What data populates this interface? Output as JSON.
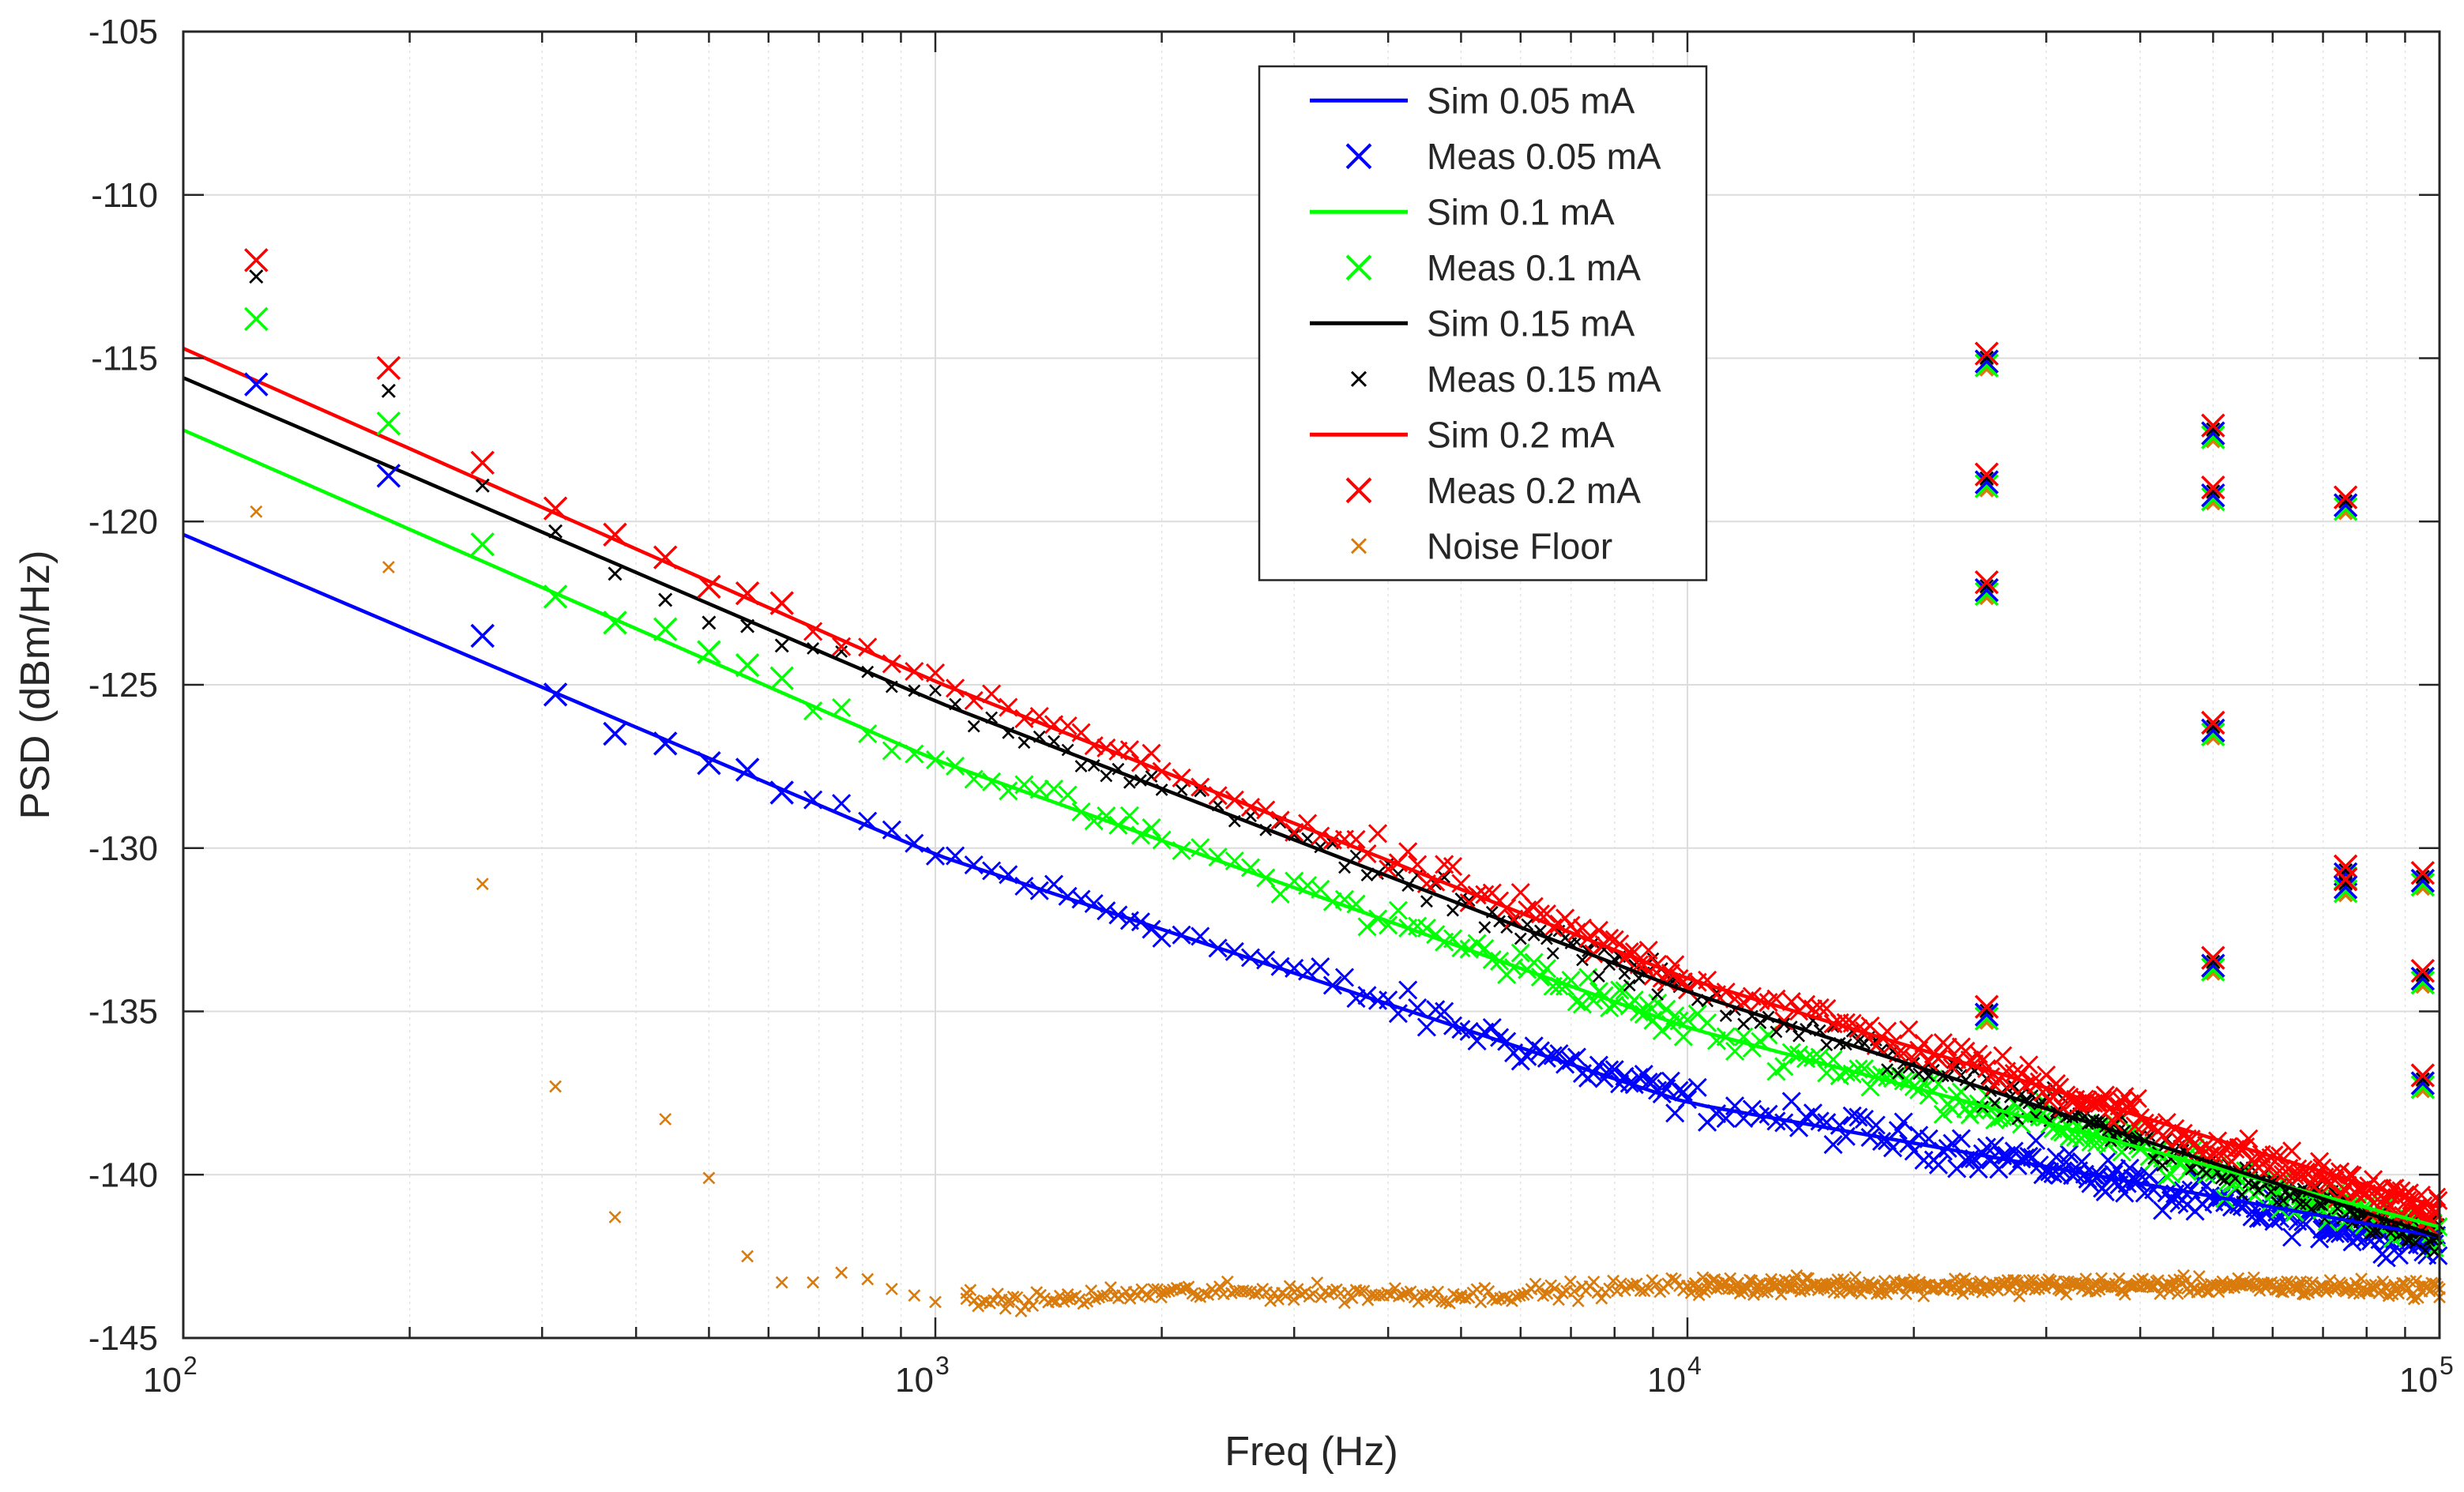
{
  "chart_data": {
    "type": "scatter",
    "title": "",
    "xlabel": "Freq (Hz)",
    "ylabel": "PSD (dBm/Hz)",
    "xscale": "log",
    "xlim": [
      100,
      100000
    ],
    "ylim": [
      -145,
      -105
    ],
    "grid": true,
    "legend_location": "top-center",
    "x_tick_labels": [
      {
        "base": "10",
        "exp": "2"
      },
      {
        "base": "10",
        "exp": "3"
      },
      {
        "base": "10",
        "exp": "4"
      },
      {
        "base": "10",
        "exp": "5"
      }
    ],
    "y_ticks": [
      -145,
      -140,
      -135,
      -130,
      -125,
      -120,
      -115,
      -110,
      -105
    ],
    "sim_lines": [
      {
        "name": "Sim 0.05 mA",
        "color": "#0000FF",
        "x": [
          100,
          1000,
          10000,
          100000
        ],
        "y": [
          -120.4,
          -130.2,
          -137.8,
          -141.9
        ]
      },
      {
        "name": "Sim 0.1 mA",
        "color": "#00FF00",
        "x": [
          100,
          1000,
          10000,
          100000
        ],
        "y": [
          -117.2,
          -127.3,
          -135.5,
          -141.6
        ]
      },
      {
        "name": "Sim 0.15 mA",
        "color": "#000000",
        "x": [
          100,
          1000,
          10000,
          100000
        ],
        "y": [
          -115.6,
          -125.5,
          -134.4,
          -141.9
        ]
      },
      {
        "name": "Sim 0.2 mA",
        "color": "#FF0000",
        "x": [
          100,
          1000,
          10000,
          100000
        ],
        "y": [
          -114.7,
          -124.9,
          -134.0,
          -141.0
        ]
      }
    ],
    "measured_series": [
      {
        "name": "Meas 0.05 mA",
        "color": "#0000FF",
        "marker": "x-large",
        "x": [
          125,
          187.5,
          250,
          312.5,
          375,
          437.5,
          500,
          562.5,
          625
        ],
        "y": [
          -115.8,
          -118.6,
          -123.5,
          -125.3,
          -126.5,
          -126.8,
          -127.4,
          -127.6,
          -128.3
        ]
      },
      {
        "name": "Meas 0.1 mA",
        "color": "#00FF00",
        "marker": "x-large",
        "x": [
          125,
          187.5,
          250,
          312.5,
          375,
          437.5,
          500,
          562.5,
          625
        ],
        "y": [
          -113.8,
          -117.0,
          -120.7,
          -122.3,
          -123.1,
          -123.3,
          -124.0,
          -124.4,
          -124.8
        ]
      },
      {
        "name": "Meas 0.15 mA",
        "color": "#000000",
        "marker": "x-small",
        "x": [
          125,
          187.5,
          250,
          312.5,
          375,
          437.5,
          500,
          562.5,
          625
        ],
        "y": [
          -112.5,
          -116.0,
          -118.9,
          -120.3,
          -121.6,
          -122.4,
          -123.1,
          -123.2,
          -123.8
        ]
      },
      {
        "name": "Meas 0.2 mA",
        "color": "#FF0000",
        "marker": "x-large",
        "x": [
          125,
          187.5,
          250,
          312.5,
          375,
          437.5,
          500,
          562.5,
          625
        ],
        "y": [
          -112.0,
          -115.3,
          -118.2,
          -119.6,
          -120.4,
          -121.1,
          -122.0,
          -122.2,
          -122.5
        ]
      }
    ],
    "dense_scatter_note": "Measured series continue densely (every 62.5 Hz) up to 100 kHz, following their simulated curves with ~0.5 dB scatter.",
    "harmonic_spurs": {
      "x": [
        25000,
        50000,
        75000,
        95000
      ],
      "y_groups": [
        [
          -115.1,
          -118.8,
          -122.1,
          -135.1
        ],
        [
          -117.3,
          -119.2,
          -126.4,
          -133.6
        ],
        [
          -119.5,
          -130.8,
          -131.2
        ],
        [
          -131.0,
          -134.0,
          -137.2
        ]
      ]
    },
    "noise_floor": {
      "name": "Noise Floor",
      "color": "#D97B0C",
      "marker": "x-small",
      "x": [
        125,
        187.5,
        250,
        312.5,
        375,
        437.5,
        500,
        562.5,
        625,
        687.5,
        750,
        812.5,
        875,
        937.5,
        1000,
        1100,
        1250,
        1500,
        2000,
        3000,
        5000,
        10000,
        20000,
        50000,
        100000
      ],
      "y": [
        -119.7,
        -121.4,
        -131.1,
        -137.3,
        -141.3,
        -138.3,
        -140.1,
        -142.5,
        -143.3,
        -143.3,
        -143.0,
        -143.2,
        -143.5,
        -143.7,
        -143.9,
        -143.8,
        -143.9,
        -143.8,
        -143.6,
        -143.6,
        -143.7,
        -143.4,
        -143.4,
        -143.4,
        -143.5
      ]
    },
    "legend": [
      {
        "label": "Sim 0.05 mA",
        "color": "#0000FF",
        "kind": "line"
      },
      {
        "label": "Meas 0.05 mA",
        "color": "#0000FF",
        "kind": "x-large"
      },
      {
        "label": "Sim 0.1 mA",
        "color": "#00FF00",
        "kind": "line"
      },
      {
        "label": "Meas 0.1 mA",
        "color": "#00FF00",
        "kind": "x-large"
      },
      {
        "label": "Sim 0.15 mA",
        "color": "#000000",
        "kind": "line"
      },
      {
        "label": "Meas 0.15 mA",
        "color": "#000000",
        "kind": "x-small"
      },
      {
        "label": "Sim 0.2 mA",
        "color": "#FF0000",
        "kind": "line"
      },
      {
        "label": "Meas 0.2 mA",
        "color": "#FF0000",
        "kind": "x-large"
      },
      {
        "label": "Noise Floor",
        "color": "#D97B0C",
        "kind": "x-small"
      }
    ]
  }
}
